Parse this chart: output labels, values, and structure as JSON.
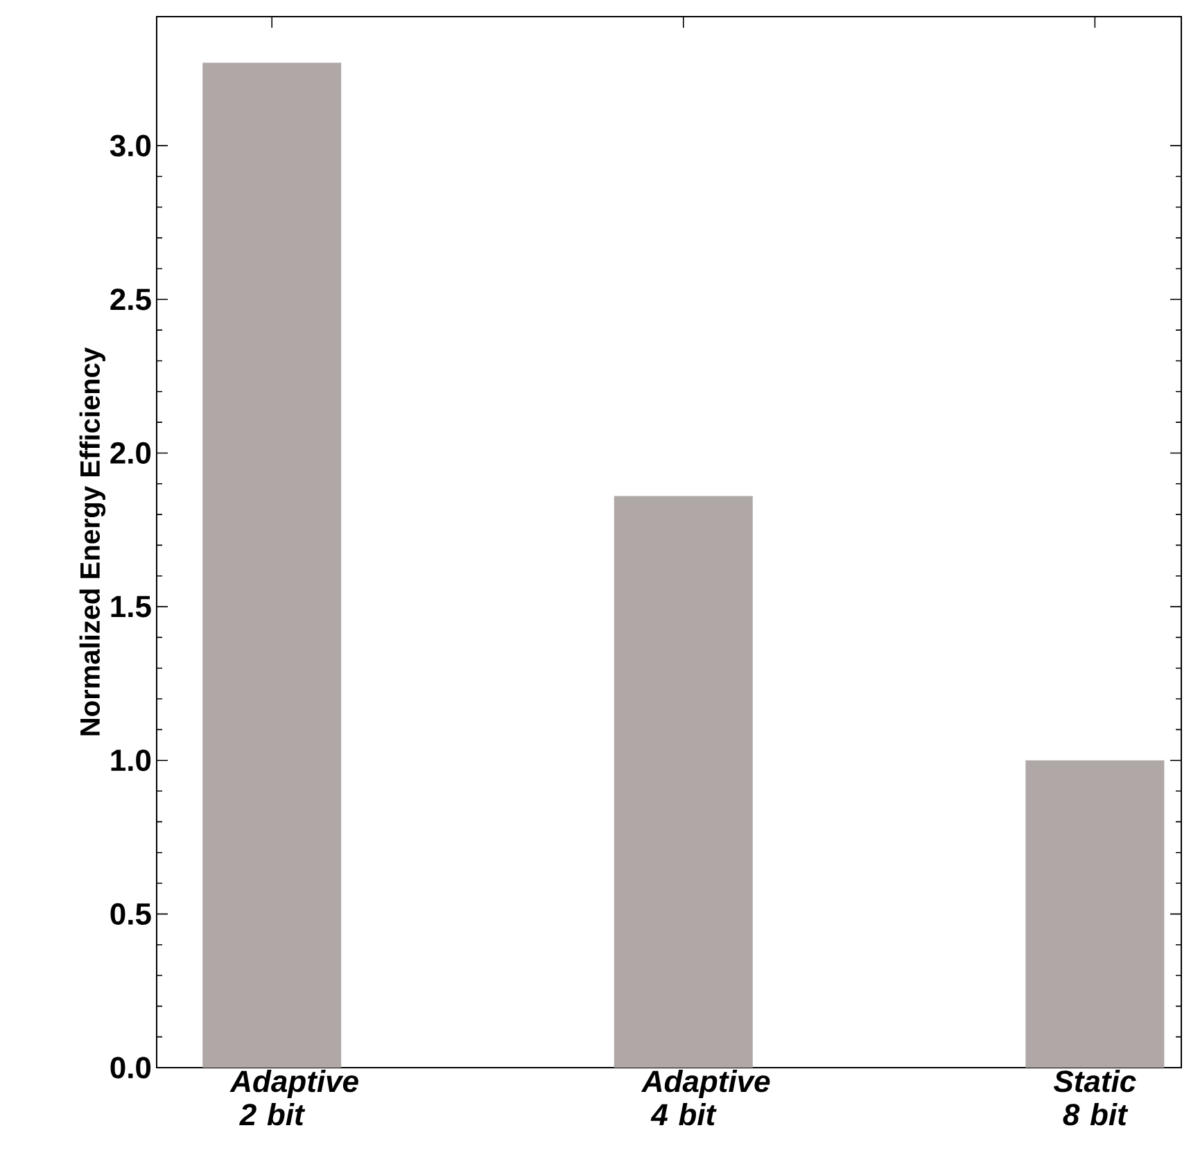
{
  "chart_data": {
    "type": "bar",
    "ylabel": "Normalized Energy Efficiency",
    "categories": [
      "Adaptive 2 bit",
      "Adaptive 4 bit",
      "Static 8 bit"
    ],
    "values": [
      3.27,
      1.86,
      1.0
    ],
    "color": "#b0a8a6",
    "ylim": [
      0,
      3.42
    ],
    "yticks": [
      {
        "value": 0,
        "label": "0.0"
      },
      {
        "value": 0.5,
        "label": "0.5"
      },
      {
        "value": 1,
        "label": "1.0"
      },
      {
        "value": 1.5,
        "label": "1.5"
      },
      {
        "value": 2,
        "label": "2.0"
      },
      {
        "value": 2.5,
        "label": "2.5"
      },
      {
        "value": 3,
        "label": "3.0"
      }
    ],
    "marker": "none"
  }
}
